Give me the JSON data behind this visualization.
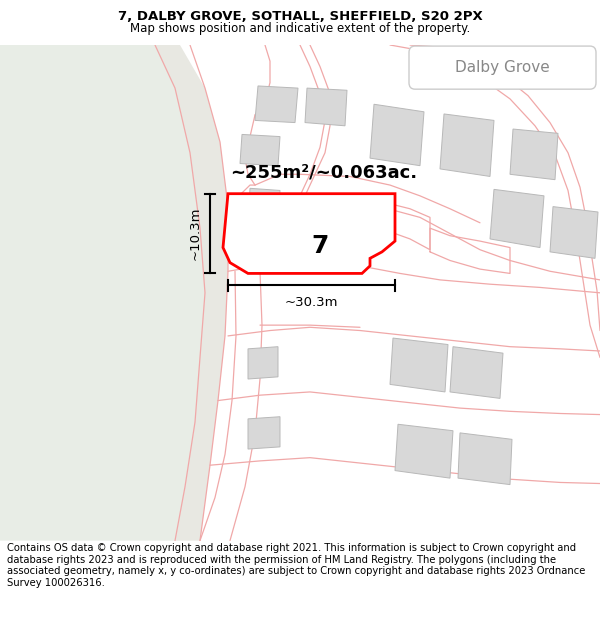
{
  "title_line1": "7, DALBY GROVE, SOTHALL, SHEFFIELD, S20 2PX",
  "title_line2": "Map shows position and indicative extent of the property.",
  "footer_text": "Contains OS data © Crown copyright and database right 2021. This information is subject to Crown copyright and database rights 2023 and is reproduced with the permission of HM Land Registry. The polygons (including the associated geometry, namely x, y co-ordinates) are subject to Crown copyright and database rights 2023 Ordnance Survey 100026316.",
  "map_bg": "#f7f7f5",
  "green_area_color": "#e8ede6",
  "building_fill": "#d8d8d8",
  "building_edge": "#b8b8b8",
  "road_line_color": "#f0a8a8",
  "highlight_plot_color": "#ff0000",
  "highlight_plot_fill": "white",
  "street_label": "Dalby Grove",
  "property_number": "7",
  "area_label": "~255m²/~0.063ac.",
  "width_label": "~30.3m",
  "height_label": "~10.3m",
  "footer_bg": "white",
  "title_fontsize": 9.5,
  "subtitle_fontsize": 8.5,
  "footer_fontsize": 7.2,
  "map_xlim": [
    0,
    600
  ],
  "map_ylim": [
    0,
    460
  ]
}
